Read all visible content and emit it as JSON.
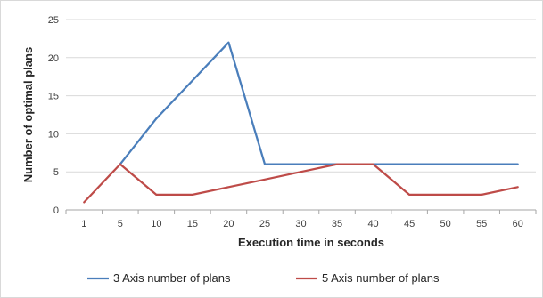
{
  "chart_data": {
    "type": "line",
    "categories": [
      "1",
      "5",
      "10",
      "15",
      "20",
      "25",
      "30",
      "35",
      "40",
      "45",
      "50",
      "55",
      "60"
    ],
    "series": [
      {
        "name": "3 Axis number of plans",
        "color": "#4a7ebb",
        "values": [
          null,
          6,
          12,
          17,
          22,
          6,
          6,
          6,
          6,
          6,
          6,
          6,
          6
        ]
      },
      {
        "name": "5 Axis number of plans",
        "color": "#be4b48",
        "values": [
          1,
          6,
          2,
          2,
          3,
          4,
          5,
          6,
          6,
          2,
          2,
          2,
          3
        ]
      }
    ],
    "title": "",
    "xlabel": "Execution time in seconds",
    "ylabel": "Number of optimal plans",
    "ylim": [
      0,
      25
    ],
    "yticks": [
      0,
      5,
      10,
      15,
      20,
      25
    ],
    "grid": true,
    "legend": "bottom"
  }
}
